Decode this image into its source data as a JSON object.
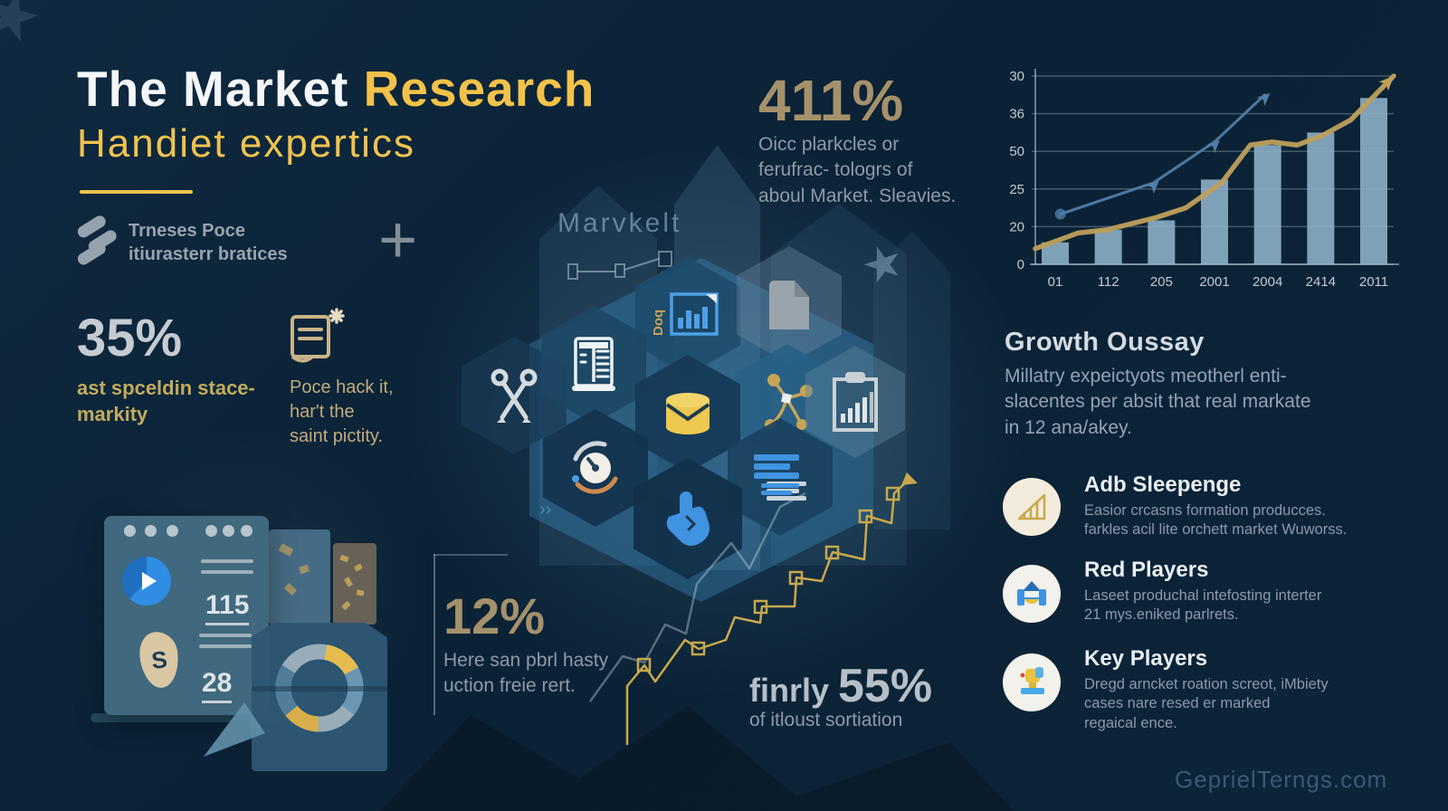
{
  "page": {
    "watermark": "GeprielTerngs.com"
  },
  "colors": {
    "background": "#0c2337",
    "accent_yellow": "#f2c24a",
    "muted_gold": "#a5916b",
    "bar_blue": "#8fb3ca",
    "line_gold": "#bfa05a",
    "line_blue": "#4f7ea8",
    "text_gray": "#8d9aa8"
  },
  "header": {
    "title_white": "The Market ",
    "title_yellow": "Research",
    "subtitle": "Handiet expertics",
    "brand_line1": "Trneses Poce",
    "brand_line2": "itiurasterr bratices",
    "brand_icon": "abstract-s-logo-icon"
  },
  "stats": {
    "stat_411": {
      "value": "411%",
      "desc": "Oicc plarkcles or\nferufrac- tologrs of\naboul Market. Sleavies."
    },
    "stat_35": {
      "value": "35%",
      "desc": "ast spceldin stace-\nmarkity"
    },
    "note": "Poce hack it,\nhar't the\nsaint pictity.",
    "stat_12": {
      "value": "12%",
      "desc": "Here san pbrl hasty\nuction freie rert."
    },
    "stat_55": {
      "value_prefix": "finrly ",
      "value_number": "55%",
      "desc": "of itloust sortiation"
    }
  },
  "center": {
    "label": "Marvkelt",
    "plus_sign": "+",
    "hex_icons": [
      "scissors-icon",
      "server-icon",
      "doc-chart-icon",
      "file-icon",
      "database-icon",
      "network-icon",
      "gauge-icon",
      "doc-lines-icon",
      "hand-icon",
      "clipboard-chart-icon"
    ]
  },
  "window_card": {
    "num1": "115",
    "num2": "28",
    "money_symbol": "S"
  },
  "right_panel": {
    "growth": {
      "title": "Growth Oussay",
      "body": "Millatry expeictyots  meotherl enti-\nslacentes per absit that real markate\nin 12 ana/akey."
    },
    "players": [
      {
        "icon": "bar-growth-icon",
        "title": "Adb Sleepenge",
        "desc": "Easior crcasns formation producces.\nfarkles acil lite orchett market Wuworss."
      },
      {
        "icon": "house-icon",
        "title": "Red Players",
        "desc": "Laseet produchal intefosting interter\n21 mys.eniked parlrets."
      },
      {
        "icon": "trophy-icon",
        "title": "Key Players",
        "desc": "Dregd arncket roation screot, iMbiety\ncases nare resed er marked\nregaical ence."
      }
    ]
  },
  "chart_data": {
    "type": "bar",
    "title": "",
    "categories": [
      "01",
      "112",
      "205",
      "2001",
      "2004",
      "2414",
      "2011"
    ],
    "y_tick_labels": [
      "30",
      "36",
      "50",
      "25",
      "20",
      "0"
    ],
    "ylim": [
      0,
      30
    ],
    "grid": true,
    "series": [
      {
        "name": "volume-bars",
        "type": "bar",
        "color": "#8fb3ca",
        "values": [
          3.5,
          5.5,
          7,
          13.5,
          19,
          21,
          26.5
        ]
      },
      {
        "name": "gold-trend",
        "type": "line",
        "color": "#bfa05a",
        "points": [
          [
            0,
            2.5
          ],
          [
            0.12,
            5
          ],
          [
            0.2,
            5.5
          ],
          [
            0.27,
            6.5
          ],
          [
            0.34,
            7.5
          ],
          [
            0.42,
            9
          ],
          [
            0.52,
            13
          ],
          [
            0.6,
            19
          ],
          [
            0.66,
            19.5
          ],
          [
            0.73,
            19
          ],
          [
            0.8,
            20.5
          ],
          [
            0.88,
            23
          ],
          [
            1,
            30
          ]
        ]
      },
      {
        "name": "blue-trend",
        "type": "line",
        "color": "#4f7ea8",
        "markers": "arrow",
        "points": [
          [
            0.07,
            8
          ],
          [
            0.33,
            13
          ],
          [
            0.5,
            19.5
          ],
          [
            0.64,
            27
          ]
        ]
      }
    ]
  }
}
